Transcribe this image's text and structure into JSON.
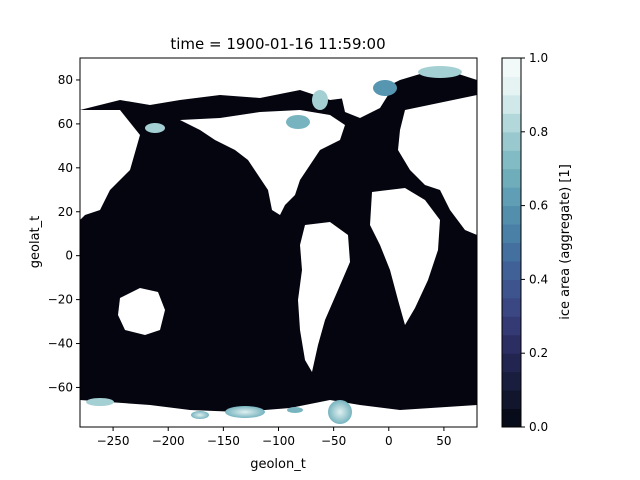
{
  "chart_data": {
    "type": "heatmap",
    "title": "time = 1900-01-16 11:59:00",
    "xlabel": "geolon_t",
    "ylabel": "geolat_t",
    "xlim": [
      -280,
      80
    ],
    "ylim": [
      -78,
      90
    ],
    "x_ticks": [
      -250,
      -200,
      -150,
      -100,
      -50,
      0,
      50
    ],
    "y_ticks": [
      -60,
      -40,
      -20,
      0,
      20,
      40,
      60,
      80
    ],
    "colorbar": {
      "label": "ice area  (aggregate) [1]",
      "range": [
        0.0,
        1.0
      ],
      "ticks": [
        "0.0",
        "0.2",
        "0.4",
        "0.6",
        "0.8",
        "1.0"
      ],
      "levels": 20,
      "colormap": [
        "#04050f",
        "#151b35",
        "#28285a",
        "#38407d",
        "#3e5a93",
        "#4577a2",
        "#5796b0",
        "#77b4bf",
        "#a4d0d4",
        "#dff0f0",
        "#f8fcfc"
      ]
    },
    "grid": false,
    "legend": "none"
  }
}
